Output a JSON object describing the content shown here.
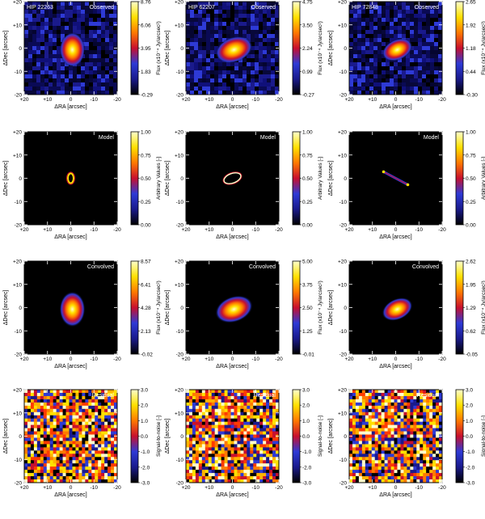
{
  "figure": {
    "colors": {
      "cmap_stops": [
        "#000000",
        "#1a1a8c",
        "#2e3ad6",
        "#c8102e",
        "#ff7a00",
        "#ffe100",
        "#ffffcc"
      ],
      "frame": "#000000",
      "label_text": "#ffffff"
    },
    "rows": [
      {
        "id": "observed",
        "kind": "observed",
        "bar_label": "Flux (x10⁻⁴ Jy/arcsec²)",
        "panels": [
          {
            "target": "HIP 22263",
            "tag": "Observed",
            "ticks": [
              "8.76",
              "6.06",
              "3.95",
              "1.83",
              "-0.29"
            ]
          },
          {
            "target": "HIP 62207",
            "tag": "Observed",
            "ticks": [
              "4.75",
              "3.50",
              "2.24",
              "0.99",
              "-0.27"
            ]
          },
          {
            "target": "HIP 72848",
            "tag": "Observed",
            "ticks": [
              "2.65",
              "1.92",
              "1.18",
              "0.44",
              "-0.30"
            ]
          }
        ]
      },
      {
        "id": "model",
        "kind": "model",
        "bar_label": "Arbitrary Values [-]",
        "panels": [
          {
            "target": "",
            "tag": "Model",
            "shape": "ring-small",
            "ticks": [
              "1.00",
              "0.75",
              "0.50",
              "0.25",
              "0.00"
            ]
          },
          {
            "target": "",
            "tag": "Model",
            "shape": "ellipse",
            "ticks": [
              "1.00",
              "0.75",
              "0.50",
              "0.25",
              "0.00"
            ]
          },
          {
            "target": "",
            "tag": "Model",
            "shape": "line",
            "ticks": [
              "1.00",
              "0.75",
              "0.50",
              "0.25",
              "0.00"
            ]
          }
        ]
      },
      {
        "id": "convolved",
        "kind": "convolved",
        "bar_label": "Flux (x10⁻⁴ Jy/arcsec²)",
        "panels": [
          {
            "target": "",
            "tag": "Convolved",
            "ticks": [
              "8.57",
              "6.41",
              "4.28",
              "2.13",
              "-0.02"
            ]
          },
          {
            "target": "",
            "tag": "Convolved",
            "ticks": [
              "5.00",
              "3.75",
              "2.50",
              "1.25",
              "-0.01"
            ]
          },
          {
            "target": "",
            "tag": "Convolved",
            "ticks": [
              "2.62",
              "1.95",
              "1.29",
              "0.62",
              "-0.05"
            ]
          }
        ]
      },
      {
        "id": "residual",
        "kind": "residual",
        "bar_label": "Signal-to-noise [-]",
        "panels": [
          {
            "target": "",
            "tag": "Residual",
            "ticks": [
              "3.0",
              "2.0",
              "1.0",
              "0.0",
              "-1.0",
              "-2.0",
              "-3.0"
            ]
          },
          {
            "target": "",
            "tag": "Residual",
            "ticks": [
              "3.0",
              "2.0",
              "1.0",
              "0.0",
              "-1.0",
              "-2.0",
              "-3.0"
            ]
          },
          {
            "target": "",
            "tag": "Residual",
            "ticks": [
              "3.0",
              "2.0",
              "1.0",
              "0.0",
              "-1.0",
              "-2.0",
              "-3.0"
            ]
          }
        ]
      }
    ],
    "axes": {
      "xlabel": "ΔRA [arcsec]",
      "ylabel": "ΔDec [arcsec]",
      "xticks": [
        "+20",
        "+10",
        "0",
        "-10",
        "-20"
      ],
      "yticks": [
        "+20",
        "+10",
        "0",
        "-10",
        "-20"
      ]
    }
  }
}
